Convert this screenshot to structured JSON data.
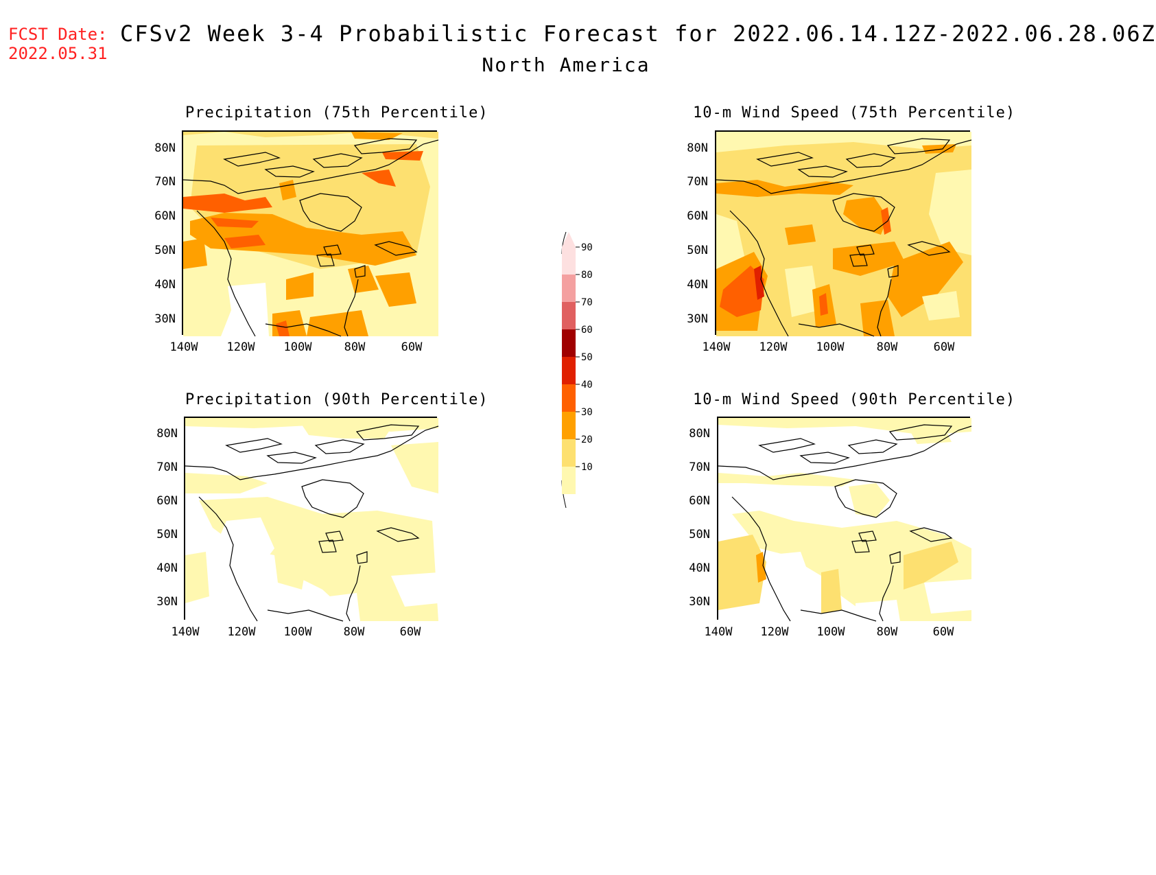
{
  "header": {
    "fcst_label": "FCST Date:",
    "fcst_date": "2022.05.31",
    "title": "CFSv2 Week 3-4 Probabilistic Forecast for 2022.06.14.12Z-2022.06.28.06Z",
    "subtitle": "North America"
  },
  "panels": [
    {
      "id": "p75",
      "title": "Precipitation (75th Percentile)"
    },
    {
      "id": "w75",
      "title": "10-m Wind Speed (75th Percentile)"
    },
    {
      "id": "p90",
      "title": "Precipitation (90th Percentile)"
    },
    {
      "id": "w90",
      "title": "10-m Wind Speed (90th Percentile)"
    }
  ],
  "axes": {
    "lat_labels": [
      "80N",
      "70N",
      "60N",
      "50N",
      "40N",
      "30N"
    ],
    "lon_labels": [
      "140W",
      "120W",
      "100W",
      "80W",
      "60W"
    ]
  },
  "legend": {
    "levels": [
      "90",
      "80",
      "70",
      "60",
      "50",
      "40",
      "30",
      "20",
      "10"
    ],
    "colors": [
      "#fde0e0",
      "#f4a0a0",
      "#e06060",
      "#a00000",
      "#e02000",
      "#ff6000",
      "#ffa000",
      "#fde070",
      "#fff8b0"
    ]
  },
  "colors": {
    "c10": "#fff8b0",
    "c20": "#fde070",
    "c30": "#ffa000",
    "c40": "#ff6000",
    "fcst_red": "#ff2020"
  }
}
